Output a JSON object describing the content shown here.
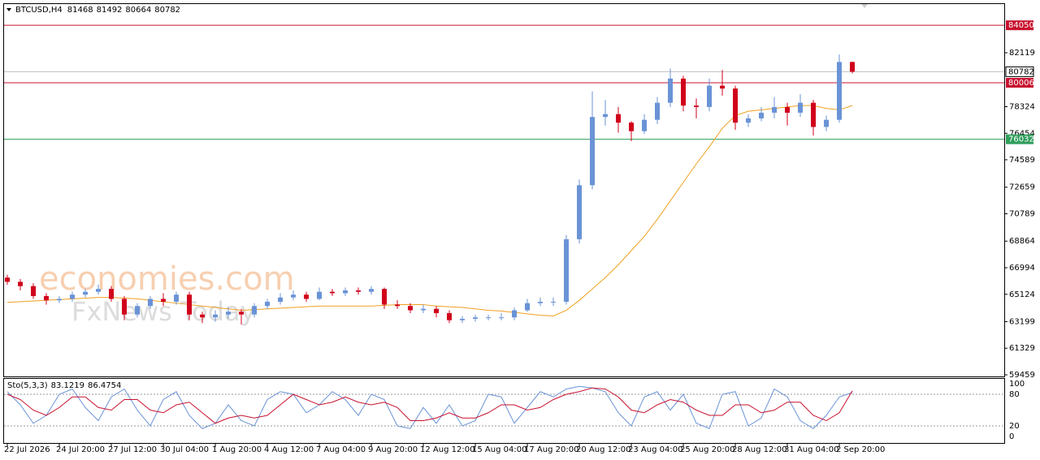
{
  "chart_data": {
    "type": "candlestick",
    "symbol": "BTCUSD,H4",
    "up_color": "#6a93d6",
    "down_color": "#d0021b",
    "categories": [
      "22 Jul 2026",
      null,
      null,
      null,
      "24 Jul 20:00",
      null,
      null,
      null,
      "27 Jul 12:00",
      null,
      null,
      null,
      "30 Jul 04:00",
      null,
      null,
      null,
      "1 Aug 20:00",
      null,
      null,
      null,
      "4 Aug 12:00",
      null,
      null,
      null,
      "7 Aug 04:00",
      null,
      null,
      null,
      "9 Aug 20:00",
      null,
      null,
      null,
      "12 Aug 12:00",
      null,
      null,
      null,
      "15 Aug 04:00",
      null,
      null,
      null,
      "17 Aug 20:00",
      null,
      null,
      null,
      "20 Aug 12:00",
      null,
      null,
      null,
      "23 Aug 04:00",
      null,
      null,
      null,
      "25 Aug 20:00",
      null,
      null,
      null,
      "28 Aug 12:00",
      null,
      null,
      null,
      "31 Aug 04:00",
      null,
      null,
      null,
      "2 Sep 20:00",
      null
    ],
    "open": [
      66300,
      66000,
      65700,
      65000,
      64700,
      64800,
      65100,
      65300,
      65500,
      64800,
      63700,
      64300,
      64800,
      64600,
      65100,
      63700,
      63500,
      63700,
      63900,
      63700,
      64300,
      64600,
      64900,
      65100,
      64800,
      65300,
      65200,
      65400,
      65300,
      65500,
      64400,
      64300,
      64000,
      64100,
      63800,
      63300,
      63400,
      63500,
      63500,
      63500,
      64000,
      64500,
      64600,
      64600,
      69000,
      72800,
      77600,
      77800,
      77200,
      76600,
      77400,
      78600,
      80300,
      78400,
      78300,
      79800,
      79600,
      77200,
      77500,
      77900,
      78300,
      77900,
      78600,
      76900,
      77400,
      81468
    ],
    "high": [
      66500,
      66200,
      65900,
      65200,
      65000,
      65300,
      65500,
      65800,
      65700,
      65000,
      64500,
      65000,
      65200,
      65300,
      65300,
      63900,
      64000,
      64200,
      64100,
      64500,
      64800,
      65200,
      65400,
      65300,
      65600,
      65500,
      65600,
      65600,
      65700,
      65600,
      64700,
      64500,
      64400,
      64300,
      64000,
      63600,
      63700,
      63700,
      63800,
      64200,
      64800,
      64900,
      64900,
      69300,
      73200,
      79400,
      78800,
      78300,
      77300,
      77800,
      79000,
      81000,
      80500,
      78900,
      80300,
      80900,
      79800,
      77800,
      78300,
      79000,
      78600,
      79200,
      78800,
      77700,
      82000,
      81492
    ],
    "low": [
      65800,
      65400,
      64800,
      64400,
      64500,
      64600,
      64900,
      65100,
      64600,
      63300,
      63500,
      64100,
      64300,
      64400,
      63300,
      63100,
      63200,
      63400,
      63000,
      63500,
      64100,
      64400,
      64700,
      64600,
      64700,
      65000,
      65000,
      65100,
      65100,
      64100,
      64100,
      63800,
      63800,
      63500,
      63100,
      63100,
      63200,
      63300,
      63300,
      63300,
      63900,
      64300,
      64300,
      64400,
      68700,
      72500,
      77000,
      76500,
      75900,
      76400,
      77100,
      78300,
      78000,
      77500,
      78000,
      79100,
      76700,
      76900,
      77300,
      77500,
      77000,
      77600,
      76300,
      76600,
      77200,
      80664
    ],
    "close": [
      66000,
      65700,
      65000,
      64700,
      64800,
      65100,
      65300,
      65500,
      64800,
      63700,
      64300,
      64800,
      64600,
      65100,
      63700,
      63500,
      63700,
      63900,
      63700,
      64300,
      64600,
      64900,
      65100,
      64800,
      65300,
      65200,
      65400,
      65300,
      65500,
      64400,
      64300,
      64000,
      64100,
      63800,
      63300,
      63400,
      63500,
      63500,
      63500,
      64000,
      64500,
      64600,
      64600,
      69000,
      72800,
      77600,
      77800,
      77200,
      76600,
      77400,
      78600,
      80300,
      78400,
      78300,
      79800,
      79600,
      77200,
      77500,
      77900,
      78300,
      77900,
      78600,
      76900,
      77400,
      81468,
      80782
    ],
    "ma": {
      "color": "#f0a020",
      "values": [
        64550,
        64600,
        64650,
        64700,
        64750,
        64800,
        64850,
        64900,
        64900,
        64850,
        64800,
        64700,
        64600,
        64500,
        64400,
        64300,
        64200,
        64100,
        64000,
        64050,
        64100,
        64150,
        64200,
        64250,
        64300,
        64300,
        64300,
        64300,
        64300,
        64350,
        64400,
        64400,
        64400,
        64300,
        64250,
        64200,
        64100,
        64000,
        63950,
        63850,
        63750,
        63650,
        63600,
        64000,
        64700,
        65500,
        66300,
        67200,
        68200,
        69200,
        70400,
        71700,
        73000,
        74300,
        75500,
        76800,
        77700,
        78000,
        78100,
        78200,
        78300,
        78400,
        78400,
        78200,
        78100,
        78400
      ]
    },
    "ylim": [
      59288,
      85544
    ],
    "yticks": [
      59459,
      61329,
      63199,
      65124,
      66994,
      68864,
      70789,
      72659,
      74589,
      76454,
      78324,
      82119
    ],
    "levels": [
      {
        "value": 84050,
        "color": "#c8102e"
      },
      {
        "value": 80006,
        "color": "#c8102e"
      },
      {
        "value": 76032,
        "color": "#2e9e5b"
      }
    ],
    "watermark": [
      "economies.com",
      "FxNews Today"
    ],
    "stochastic": {
      "type": "line",
      "label": "Sto(5,3,3)",
      "ylim": [
        0,
        100
      ],
      "yticks": [
        0,
        20,
        80,
        100
      ],
      "series": [
        {
          "color": "#6a93d6",
          "values": [
            85,
            60,
            25,
            40,
            80,
            90,
            55,
            30,
            75,
            90,
            50,
            20,
            70,
            85,
            40,
            15,
            25,
            60,
            30,
            20,
            70,
            85,
            80,
            45,
            60,
            85,
            70,
            40,
            80,
            70,
            20,
            15,
            55,
            25,
            60,
            20,
            30,
            80,
            75,
            25,
            55,
            85,
            75,
            90,
            95,
            92,
            85,
            45,
            20,
            75,
            85,
            50,
            80,
            25,
            15,
            80,
            85,
            20,
            35,
            90,
            75,
            30,
            15,
            40,
            75,
            83.1219
          ]
        },
        {
          "color": "#c8102e",
          "values": [
            80,
            70,
            50,
            40,
            55,
            75,
            75,
            55,
            50,
            70,
            70,
            50,
            45,
            60,
            65,
            45,
            25,
            35,
            40,
            35,
            40,
            60,
            80,
            70,
            60,
            65,
            75,
            65,
            60,
            65,
            55,
            30,
            30,
            35,
            45,
            35,
            35,
            45,
            60,
            60,
            50,
            55,
            70,
            80,
            85,
            92,
            90,
            75,
            50,
            45,
            60,
            70,
            65,
            50,
            40,
            40,
            60,
            60,
            45,
            50,
            65,
            65,
            40,
            30,
            45,
            86.4754
          ]
        }
      ]
    }
  }
}
